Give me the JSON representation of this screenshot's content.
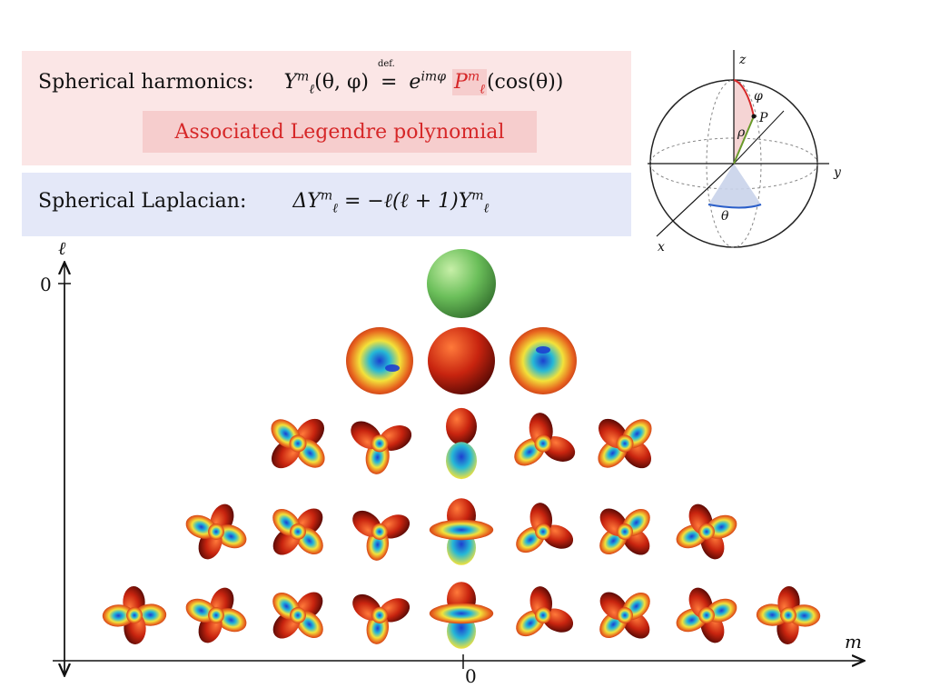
{
  "harmonics": {
    "label": "Spherical harmonics:",
    "lhs": "Y",
    "lhs_sup": "m",
    "lhs_sub": "ℓ",
    "lhs_args": "(θ, φ)",
    "def_mark": "def.",
    "eq": "=",
    "e": "e",
    "e_sup": "imφ",
    "legendre_symbol": "P",
    "legendre_sup": "m",
    "legendre_sub": "ℓ",
    "legendre_args": "(cos(θ))",
    "legendre_label": "Associated Legendre polynomial"
  },
  "laplacian": {
    "label": "Spherical Laplacian:",
    "lhs": "ΔY",
    "lhs_sup": "m",
    "lhs_sub": "ℓ",
    "rhs": "= −ℓ(ℓ + 1)Y",
    "rhs_sup": "m",
    "rhs_sub": "ℓ"
  },
  "axes": {
    "y_label": "ℓ",
    "x_label": "m",
    "y_origin_tick": "0",
    "x_origin_tick": "0"
  },
  "sphere_diagram": {
    "z": "z",
    "y": "y",
    "x": "x",
    "phi": "φ",
    "rho": "ρ",
    "P": "P",
    "theta": "θ"
  },
  "harmonic_rows": [
    {
      "l": 0,
      "m": [
        0
      ]
    },
    {
      "l": 1,
      "m": [
        -1,
        0,
        1
      ]
    },
    {
      "l": 2,
      "m": [
        -2,
        -1,
        0,
        1,
        2
      ]
    },
    {
      "l": 3,
      "m": [
        -3,
        -2,
        -1,
        0,
        1,
        2,
        3
      ]
    },
    {
      "l": 4,
      "m": [
        -4,
        -3,
        -2,
        -1,
        0,
        1,
        2,
        3,
        4
      ]
    }
  ],
  "colors": {
    "harmonics_bg": "#fbe6e6",
    "laplacian_bg": "#e4e8f8",
    "legendre_red": "#d62728",
    "l0_green": "#6bbf5a"
  }
}
